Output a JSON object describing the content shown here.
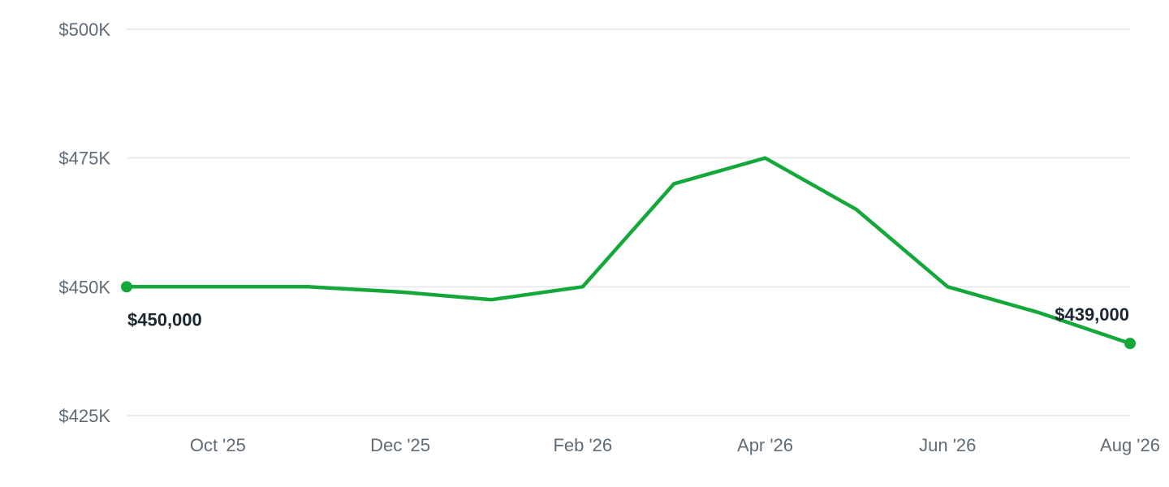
{
  "chart_data": {
    "type": "line",
    "x": [
      "2025-09",
      "2025-10",
      "2025-11",
      "2025-12",
      "2026-01",
      "2026-02",
      "2026-03",
      "2026-04",
      "2026-05",
      "2026-06",
      "2026-07",
      "2026-08"
    ],
    "series": [
      {
        "values": [
          450000,
          450000,
          450000,
          449000,
          447500,
          450000,
          470000,
          475000,
          465000,
          450000,
          445000,
          439000
        ],
        "color": "#14a83b"
      }
    ],
    "ylim": [
      425000,
      500000
    ],
    "y_ticks": [
      {
        "value": 500000,
        "label": "$500K"
      },
      {
        "value": 475000,
        "label": "$475K"
      },
      {
        "value": 450000,
        "label": "$450K"
      },
      {
        "value": 425000,
        "label": "$425K"
      }
    ],
    "x_ticks": [
      {
        "x": "2025-10",
        "label": "Oct '25"
      },
      {
        "x": "2025-12",
        "label": "Dec '25"
      },
      {
        "x": "2026-02",
        "label": "Feb '26"
      },
      {
        "x": "2026-04",
        "label": "Apr '26"
      },
      {
        "x": "2026-06",
        "label": "Jun '26"
      },
      {
        "x": "2026-08",
        "label": "Aug '26"
      }
    ],
    "annotations": [
      {
        "x": "2025-09",
        "value": 450000,
        "label": "$450,000"
      },
      {
        "x": "2026-08",
        "value": 439000,
        "label": "$439,000"
      }
    ],
    "grid": true,
    "legend": "none",
    "colors": {
      "line": "#14a83b",
      "grid": "#e3e6ea",
      "tick_text": "#5f6b76",
      "annotation_text": "#1b2733"
    }
  }
}
